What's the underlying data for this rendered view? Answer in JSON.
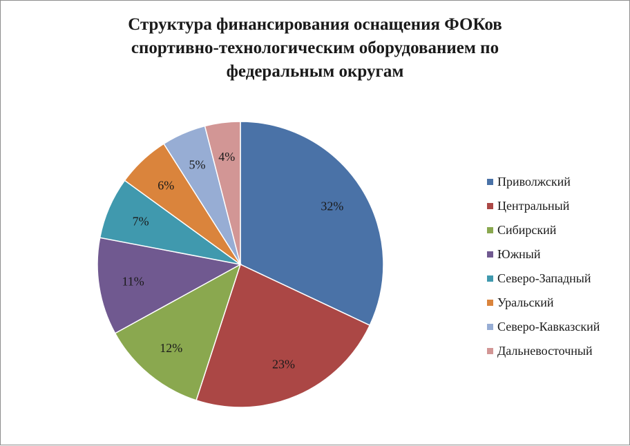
{
  "chart_data": {
    "type": "pie",
    "title_lines": [
      "Структура финансирования оснащения ФОКов",
      "спортивно-технологическим оборудованием по",
      "федеральным округам"
    ],
    "slices": [
      {
        "name": "Приволжский",
        "value": 32,
        "label": "32%",
        "color": "#4A72A7"
      },
      {
        "name": "Центральный",
        "value": 23,
        "label": "23%",
        "color": "#AB4745"
      },
      {
        "name": "Сибирский",
        "value": 12,
        "label": "12%",
        "color": "#8AA84F"
      },
      {
        "name": "Южный",
        "value": 11,
        "label": "11%",
        "color": "#705990"
      },
      {
        "name": "Северо-Западный",
        "value": 7,
        "label": "7%",
        "color": "#4099AE"
      },
      {
        "name": "Уральский",
        "value": 6,
        "label": "6%",
        "color": "#DA843C"
      },
      {
        "name": "Северо-Кавказский",
        "value": 5,
        "label": "5%",
        "color": "#97ADD4"
      },
      {
        "name": "Дальневосточный",
        "value": 4,
        "label": "4%",
        "color": "#D29695"
      }
    ],
    "legend_position": "right"
  }
}
